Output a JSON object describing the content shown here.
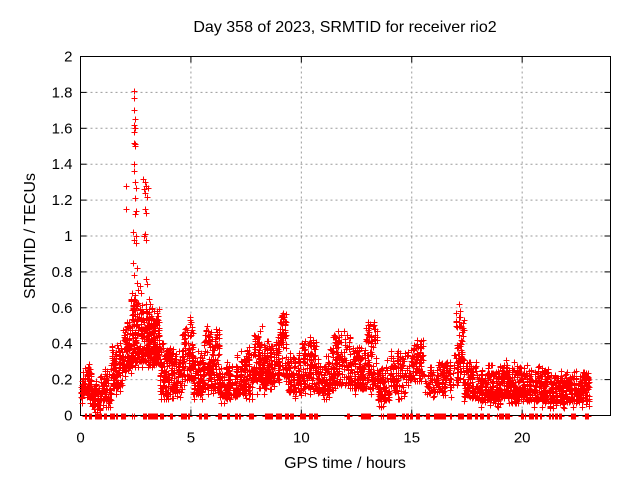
{
  "chart_data": {
    "type": "scatter",
    "title": "Day 358 of 2023, SRMTID for receiver rio2",
    "xlabel": "GPS time / hours",
    "ylabel": "SRMTID / TECUs",
    "xlim": [
      0,
      24
    ],
    "ylim": [
      0,
      2
    ],
    "xticks": [
      {
        "v": 0,
        "label": "0"
      },
      {
        "v": 5,
        "label": "5"
      },
      {
        "v": 10,
        "label": "10"
      },
      {
        "v": 15,
        "label": "15"
      },
      {
        "v": 20,
        "label": "20"
      }
    ],
    "yticks": [
      {
        "v": 0,
        "label": "0"
      },
      {
        "v": 0.2,
        "label": "0.2"
      },
      {
        "v": 0.4,
        "label": "0.4"
      },
      {
        "v": 0.6,
        "label": "0.6"
      },
      {
        "v": 0.8,
        "label": "0.8"
      },
      {
        "v": 1,
        "label": "1"
      },
      {
        "v": 1.2,
        "label": "1.2"
      },
      {
        "v": 1.4,
        "label": "1.4"
      },
      {
        "v": 1.6,
        "label": "1.6"
      },
      {
        "v": 1.8,
        "label": "1.8"
      },
      {
        "v": 2,
        "label": "2"
      }
    ],
    "grid": true,
    "legend": "none",
    "marker": "plus",
    "marker_size": 7,
    "colors": {
      "marker": "#ff0000",
      "grid": "#9a9a9a",
      "axis": "#000000",
      "text": "#000000",
      "background": "#ffffff"
    },
    "seed": 7,
    "spike_points": [
      [
        2.42,
        1.81
      ],
      [
        2.4,
        1.77
      ],
      [
        2.44,
        1.7
      ],
      [
        2.46,
        1.65
      ],
      [
        2.43,
        1.62
      ],
      [
        2.47,
        1.6
      ],
      [
        2.44,
        1.58
      ],
      [
        2.42,
        1.52
      ],
      [
        2.45,
        1.51
      ],
      [
        2.47,
        1.5
      ],
      [
        2.43,
        1.4
      ],
      [
        2.4,
        1.36
      ],
      [
        2.45,
        1.3
      ],
      [
        2.5,
        1.27
      ],
      [
        2.05,
        1.28
      ],
      [
        2.06,
        1.15
      ],
      [
        2.46,
        1.21
      ],
      [
        2.52,
        1.14
      ],
      [
        2.47,
        1.12
      ],
      [
        2.36,
        1.02
      ],
      [
        2.5,
        1.0
      ],
      [
        2.44,
        0.98
      ],
      [
        2.53,
        0.96
      ],
      [
        2.38,
        0.85
      ],
      [
        2.56,
        0.82
      ],
      [
        2.42,
        0.78
      ],
      [
        2.58,
        0.74
      ],
      [
        2.62,
        0.7
      ],
      [
        2.33,
        0.68
      ],
      [
        2.3,
        0.65
      ],
      [
        2.68,
        0.72
      ],
      [
        2.85,
        1.32
      ],
      [
        2.9,
        1.3
      ],
      [
        2.95,
        1.28
      ],
      [
        2.88,
        1.26
      ],
      [
        2.93,
        1.24
      ],
      [
        3.0,
        1.22
      ],
      [
        3.04,
        1.27
      ],
      [
        2.9,
        1.15
      ],
      [
        2.96,
        1.13
      ],
      [
        2.92,
        1.01
      ],
      [
        2.86,
        1.0
      ],
      [
        2.96,
        0.98
      ],
      [
        2.95,
        0.76
      ],
      [
        3.02,
        0.73
      ],
      [
        2.75,
        0.68
      ],
      [
        3.08,
        0.65
      ],
      [
        3.15,
        0.62
      ],
      [
        3.25,
        0.6
      ],
      [
        3.35,
        0.58
      ],
      [
        4.95,
        0.55
      ],
      [
        5.0,
        0.52
      ],
      [
        6.15,
        0.48
      ],
      [
        6.2,
        0.45
      ],
      [
        8.15,
        0.47
      ],
      [
        8.2,
        0.5
      ],
      [
        9.1,
        0.55
      ],
      [
        9.15,
        0.57
      ],
      [
        9.18,
        0.52
      ],
      [
        9.12,
        0.48
      ],
      [
        9.2,
        0.45
      ],
      [
        10.55,
        0.42
      ],
      [
        11.95,
        0.47
      ],
      [
        12.05,
        0.45
      ],
      [
        13.25,
        0.5
      ],
      [
        13.3,
        0.52
      ],
      [
        13.35,
        0.48
      ],
      [
        15.25,
        0.4
      ],
      [
        15.3,
        0.38
      ],
      [
        17.12,
        0.55
      ],
      [
        17.15,
        0.62
      ],
      [
        17.18,
        0.58
      ],
      [
        17.2,
        0.5
      ],
      [
        17.15,
        0.45
      ],
      [
        17.22,
        0.42
      ]
    ],
    "noise_bands": [
      [
        0.0,
        0.5,
        0.1,
        0.27,
        60
      ],
      [
        0.5,
        0.9,
        0.03,
        0.18,
        50
      ],
      [
        0.9,
        1.4,
        0.08,
        0.26,
        60
      ],
      [
        1.4,
        1.9,
        0.15,
        0.4,
        70
      ],
      [
        1.9,
        2.3,
        0.25,
        0.5,
        60
      ],
      [
        2.3,
        2.7,
        0.3,
        0.65,
        80
      ],
      [
        2.7,
        3.1,
        0.3,
        0.6,
        70
      ],
      [
        3.1,
        3.6,
        0.28,
        0.62,
        90
      ],
      [
        3.6,
        4.1,
        0.12,
        0.4,
        70
      ],
      [
        4.1,
        4.6,
        0.13,
        0.35,
        60
      ],
      [
        4.6,
        5.1,
        0.2,
        0.52,
        70
      ],
      [
        5.1,
        5.6,
        0.12,
        0.33,
        60
      ],
      [
        5.6,
        6.3,
        0.15,
        0.48,
        90
      ],
      [
        6.3,
        7.1,
        0.1,
        0.3,
        80
      ],
      [
        7.1,
        7.8,
        0.12,
        0.35,
        70
      ],
      [
        7.8,
        8.4,
        0.15,
        0.45,
        80
      ],
      [
        8.4,
        9.0,
        0.18,
        0.42,
        80
      ],
      [
        9.0,
        9.35,
        0.22,
        0.57,
        50
      ],
      [
        9.35,
        10.0,
        0.13,
        0.33,
        70
      ],
      [
        10.0,
        10.7,
        0.15,
        0.42,
        80
      ],
      [
        10.7,
        11.3,
        0.12,
        0.3,
        60
      ],
      [
        11.3,
        12.3,
        0.17,
        0.45,
        110
      ],
      [
        12.3,
        12.9,
        0.15,
        0.38,
        80
      ],
      [
        12.9,
        13.45,
        0.15,
        0.52,
        70
      ],
      [
        13.45,
        14.0,
        0.08,
        0.28,
        60
      ],
      [
        14.0,
        14.7,
        0.12,
        0.33,
        60
      ],
      [
        14.7,
        15.1,
        0.2,
        0.38,
        30
      ],
      [
        15.1,
        15.55,
        0.22,
        0.4,
        40
      ],
      [
        15.55,
        16.1,
        0.12,
        0.25,
        30
      ],
      [
        16.1,
        16.9,
        0.13,
        0.3,
        60
      ],
      [
        16.9,
        17.35,
        0.2,
        0.55,
        50
      ],
      [
        17.35,
        18.0,
        0.1,
        0.28,
        70
      ],
      [
        18.0,
        19.0,
        0.08,
        0.26,
        110
      ],
      [
        19.0,
        20.2,
        0.1,
        0.28,
        140
      ],
      [
        20.2,
        21.2,
        0.08,
        0.25,
        110
      ],
      [
        21.2,
        22.3,
        0.07,
        0.23,
        110
      ],
      [
        22.3,
        23.05,
        0.08,
        0.25,
        90
      ]
    ],
    "zero_runs": [
      [
        0.05,
        0.35,
        6
      ],
      [
        0.4,
        0.95,
        25
      ],
      [
        1.05,
        1.15,
        4
      ],
      [
        1.25,
        2.1,
        45
      ],
      [
        2.25,
        3.55,
        60
      ],
      [
        3.6,
        4.15,
        20
      ],
      [
        4.3,
        5.0,
        30
      ],
      [
        5.2,
        5.55,
        12
      ],
      [
        5.6,
        6.5,
        45
      ],
      [
        6.6,
        7.5,
        30
      ],
      [
        7.55,
        7.85,
        10
      ],
      [
        8.1,
        9.1,
        55
      ],
      [
        9.2,
        9.65,
        18
      ],
      [
        9.8,
        11.3,
        45
      ],
      [
        11.9,
        12.15,
        12
      ],
      [
        12.35,
        13.1,
        30
      ],
      [
        13.25,
        14.3,
        40
      ],
      [
        14.55,
        16.5,
        90
      ],
      [
        16.6,
        17.7,
        45
      ],
      [
        17.8,
        18.7,
        40
      ],
      [
        18.8,
        20.0,
        60
      ],
      [
        20.05,
        20.7,
        25
      ],
      [
        20.8,
        21.4,
        20
      ],
      [
        21.5,
        22.0,
        18
      ],
      [
        22.1,
        22.5,
        12
      ],
      [
        22.85,
        23.05,
        8
      ]
    ]
  }
}
